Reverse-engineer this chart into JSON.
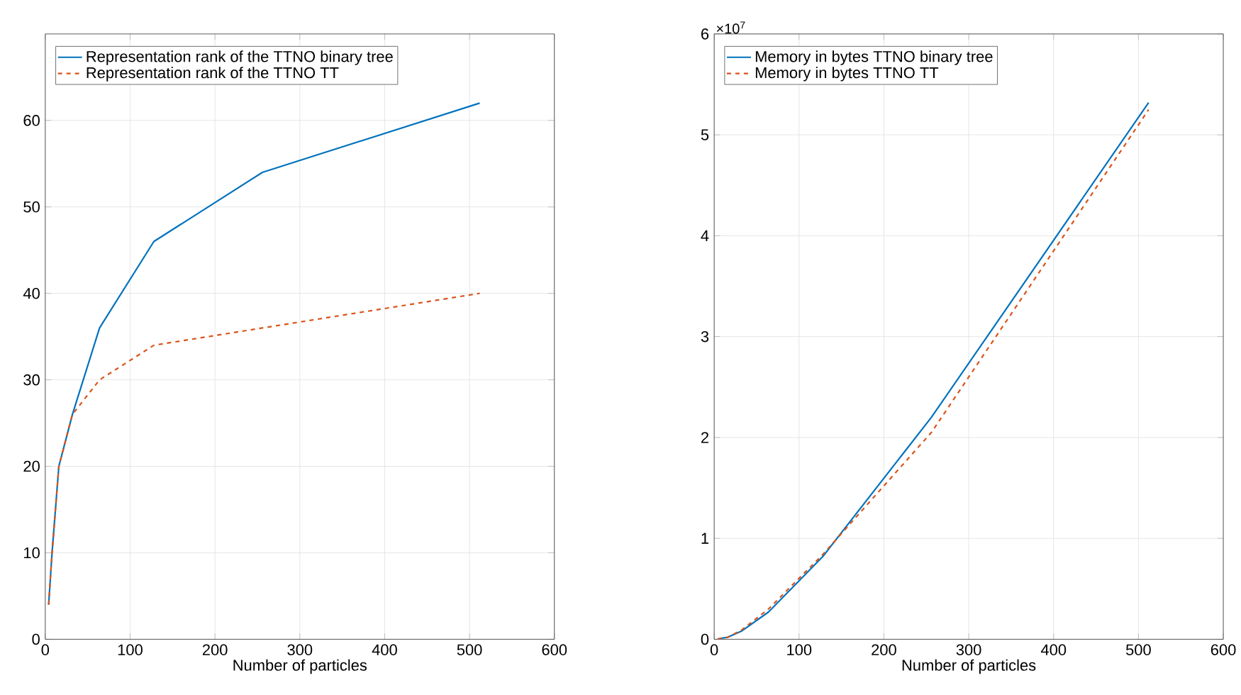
{
  "chart_data": [
    {
      "type": "line",
      "xlabel": "Number of particles",
      "x": [
        4,
        8,
        16,
        32,
        64,
        128,
        256,
        512
      ],
      "xlim": [
        0,
        600
      ],
      "xticks": [
        0,
        100,
        200,
        300,
        400,
        500,
        600
      ],
      "ylim": [
        0,
        70
      ],
      "yticks": [
        0,
        10,
        20,
        30,
        40,
        50,
        60
      ],
      "grid": true,
      "legend": "top left",
      "marker": "none",
      "series": [
        {
          "name": "Representation rank of the TTNO binary tree",
          "color": "#0072bd",
          "line_style": "solid",
          "values": [
            4,
            10,
            20,
            26,
            36,
            46,
            54,
            62
          ]
        },
        {
          "name": "Representation rank of the TTNO TT",
          "color": "#d95319",
          "line_style": "dashed",
          "values": [
            4,
            10,
            20,
            26,
            30,
            34,
            36,
            40
          ]
        }
      ]
    },
    {
      "type": "line",
      "xlabel": "Number of particles",
      "x": [
        4,
        8,
        16,
        32,
        64,
        128,
        256,
        512
      ],
      "xlim": [
        0,
        600
      ],
      "xticks": [
        0,
        100,
        200,
        300,
        400,
        500,
        600
      ],
      "ylim": [
        0,
        6
      ],
      "yticks": [
        0,
        1,
        2,
        3,
        4,
        5,
        6
      ],
      "grid": true,
      "legend": "top left",
      "marker": "none",
      "annotations": [
        "×10$^{7}$"
      ],
      "series": [
        {
          "name": "Memory in bytes TTNO binary tree",
          "color": "#0072bd",
          "line_style": "solid",
          "values": [
            0.0,
            0.01,
            0.02,
            0.08,
            0.27,
            0.82,
            2.2,
            5.32
          ]
        },
        {
          "name": "Memory in bytes TTNO TT",
          "color": "#d95319",
          "line_style": "dashed",
          "values": [
            0.0,
            0.01,
            0.02,
            0.09,
            0.3,
            0.84,
            2.05,
            5.25
          ]
        }
      ]
    }
  ]
}
